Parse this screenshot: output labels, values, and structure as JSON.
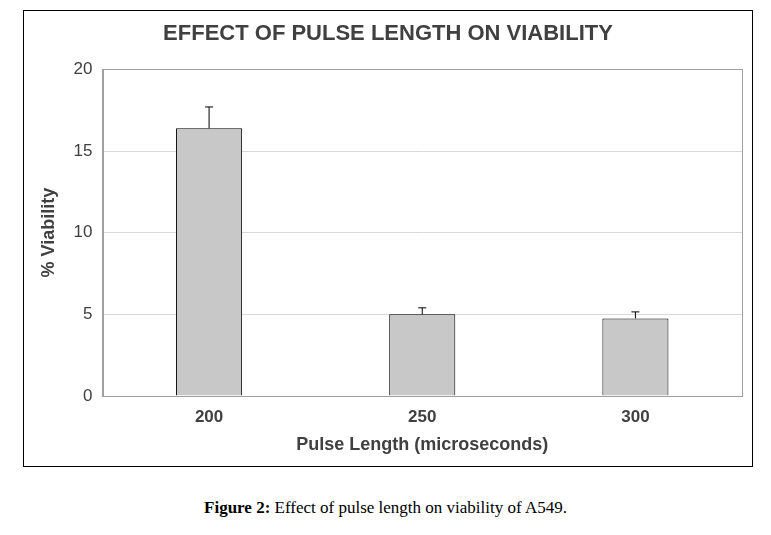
{
  "chart_data": {
    "type": "bar",
    "title": "EFFECT OF PULSE LENGTH ON VIABILITY",
    "x_label": "Pulse Length (microseconds)",
    "y_label": "% Viability",
    "categories": [
      "200",
      "250",
      "300"
    ],
    "values": [
      16.4,
      5.0,
      4.75
    ],
    "errors": [
      1.3,
      0.4,
      0.4
    ],
    "color": "#c8c8c8",
    "ylim": [
      0,
      20
    ],
    "yticks": [
      0,
      5,
      10,
      15,
      20
    ],
    "grid": true,
    "caption_label": "Figure 2:",
    "caption": "Effect of pulse length on viability of A549."
  }
}
